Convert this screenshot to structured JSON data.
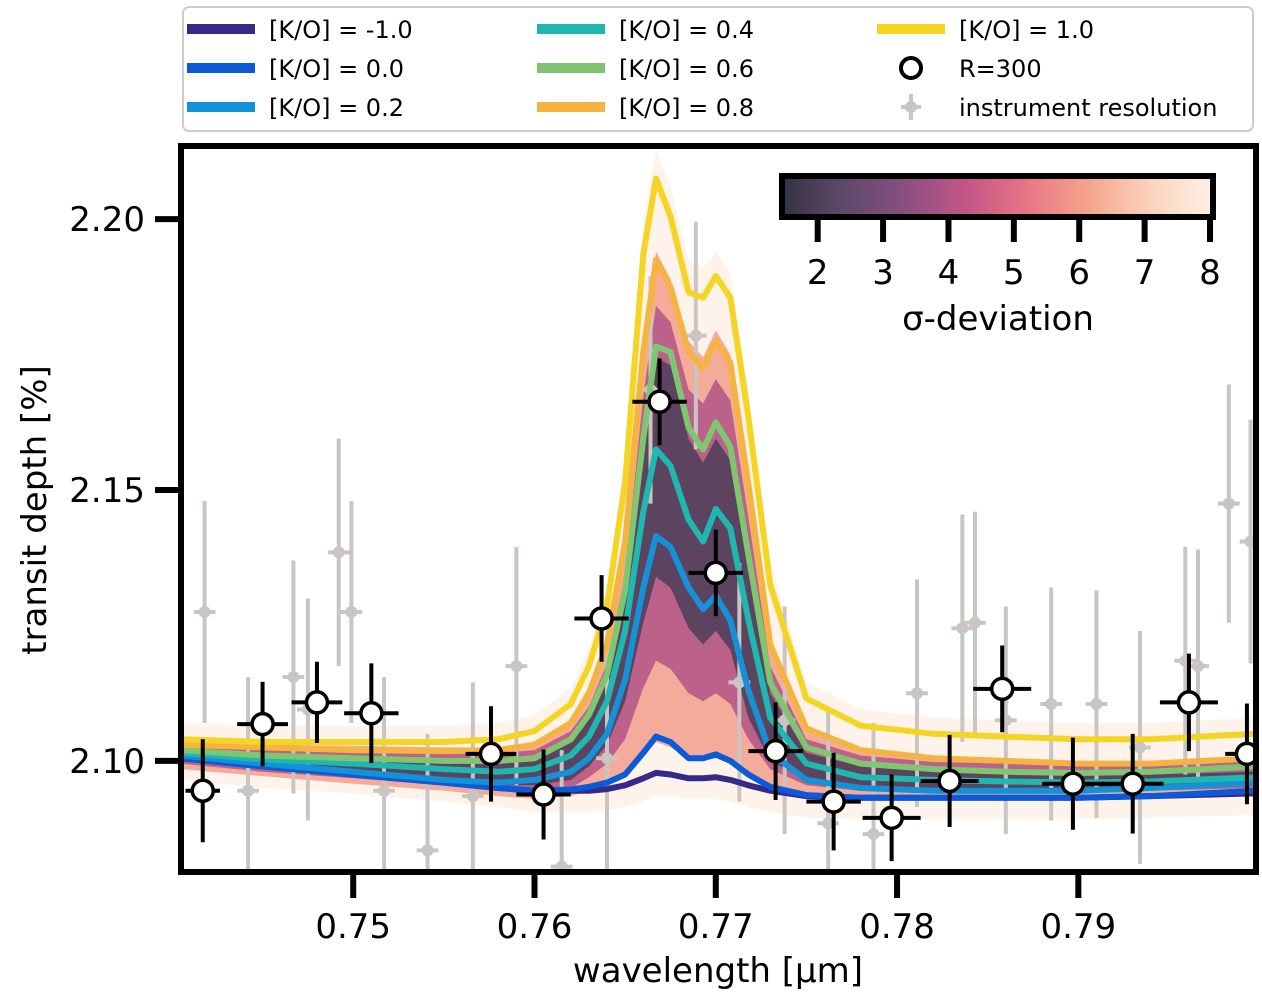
{
  "chart_data": {
    "type": "line",
    "xlabel": "wavelength [μm]",
    "ylabel": "transit depth [%]",
    "xlim": [
      0.7405,
      0.7998
    ],
    "ylim": [
      2.0795,
      2.2135
    ],
    "xticks": [
      0.75,
      0.76,
      0.77,
      0.78,
      0.79
    ],
    "xtick_labels": [
      "0.75",
      "0.76",
      "0.77",
      "0.78",
      "0.79"
    ],
    "yticks": [
      2.1,
      2.15,
      2.2
    ],
    "ytick_labels": [
      "2.10",
      "2.15",
      "2.20"
    ],
    "grid": false,
    "legend_position": "top, outside plot, 3 columns",
    "model_x": [
      0.7405,
      0.745,
      0.75,
      0.755,
      0.758,
      0.76,
      0.762,
      0.763,
      0.764,
      0.765,
      0.766,
      0.7667,
      0.7675,
      0.7685,
      0.7693,
      0.77,
      0.7708,
      0.7718,
      0.773,
      0.775,
      0.778,
      0.782,
      0.786,
      0.79,
      0.794,
      0.7998
    ],
    "series": [
      {
        "name": "[K/O] = -1.0",
        "color": "#352a87",
        "values": [
          2.1005,
          2.099,
          2.0975,
          2.096,
          2.095,
          2.0945,
          2.0945,
          2.0945,
          2.0948,
          2.0955,
          2.0968,
          2.0978,
          2.0975,
          2.0968,
          2.0968,
          2.097,
          2.0965,
          2.0955,
          2.0945,
          2.0935,
          2.0932,
          2.0932,
          2.0932,
          2.0932,
          2.0935,
          2.094
        ]
      },
      {
        "name": "[K/O] = 0.0",
        "color": "#0b5ad8",
        "values": [
          2.1005,
          2.099,
          2.0975,
          2.096,
          2.095,
          2.0945,
          2.0947,
          2.0952,
          2.096,
          2.0975,
          2.1015,
          2.1045,
          2.1035,
          2.1005,
          2.1005,
          2.1012,
          2.1,
          2.0975,
          2.0952,
          2.0937,
          2.0932,
          2.0932,
          2.0932,
          2.0932,
          2.0935,
          2.0945
        ]
      },
      {
        "name": "[K/O] = 0.2",
        "color": "#1392d8",
        "values": [
          2.101,
          2.0995,
          2.098,
          2.0965,
          2.096,
          2.0965,
          2.098,
          2.1005,
          2.105,
          2.115,
          2.132,
          2.1415,
          2.1395,
          2.132,
          2.128,
          2.1305,
          2.126,
          2.113,
          2.1015,
          2.0965,
          2.095,
          2.0945,
          2.0945,
          2.0945,
          2.095,
          2.096
        ]
      },
      {
        "name": "[K/O] = 0.4",
        "color": "#1fb8b0",
        "values": [
          2.1015,
          2.1003,
          2.0995,
          2.0985,
          2.098,
          2.0985,
          2.101,
          2.1045,
          2.111,
          2.124,
          2.146,
          2.1575,
          2.1545,
          2.1445,
          2.1405,
          2.1465,
          2.143,
          2.126,
          2.108,
          2.0995,
          2.097,
          2.0965,
          2.0962,
          2.096,
          2.0962,
          2.097
        ]
      },
      {
        "name": "[K/O] = 0.6",
        "color": "#7fc670",
        "values": [
          2.102,
          2.101,
          2.1005,
          2.1,
          2.1,
          2.1005,
          2.104,
          2.1085,
          2.116,
          2.1315,
          2.1595,
          2.1765,
          2.1755,
          2.1615,
          2.1575,
          2.1625,
          2.158,
          2.138,
          2.1145,
          2.1025,
          2.0995,
          2.0985,
          2.098,
          2.0978,
          2.098,
          2.099
        ]
      },
      {
        "name": "[K/O] = 0.8",
        "color": "#f5b342",
        "values": [
          2.103,
          2.1025,
          2.102,
          2.1018,
          2.102,
          2.103,
          2.107,
          2.1125,
          2.1215,
          2.1405,
          2.1755,
          2.1925,
          2.1875,
          2.1755,
          2.1725,
          2.1775,
          2.1735,
          2.151,
          2.1215,
          2.106,
          2.102,
          2.1005,
          2.1,
          2.0995,
          2.0995,
          2.1005
        ]
      },
      {
        "name": "[K/O] = 1.0",
        "color": "#f5d423",
        "values": [
          2.104,
          2.1035,
          2.1035,
          2.1035,
          2.104,
          2.1055,
          2.1105,
          2.1175,
          2.1285,
          2.1515,
          2.1935,
          2.2075,
          2.2005,
          2.1865,
          2.1855,
          2.1895,
          2.1855,
          2.1635,
          2.1325,
          2.1115,
          2.1065,
          2.105,
          2.1045,
          2.104,
          2.104,
          2.105
        ]
      }
    ],
    "sigma_bands": [
      {
        "sigma": 8,
        "lower": [
          2.0965,
          2.095,
          2.094,
          2.0925,
          2.0915,
          2.0905,
          2.0905,
          2.0905,
          2.091,
          2.0915,
          2.0925,
          2.0935,
          2.0935,
          2.093,
          2.093,
          2.093,
          2.0925,
          2.0915,
          2.0905,
          2.0895,
          2.0892,
          2.0892,
          2.0892,
          2.0892,
          2.0895,
          2.09
        ],
        "upper": [
          2.107,
          2.1065,
          2.1065,
          2.1065,
          2.107,
          2.1085,
          2.1135,
          2.121,
          2.132,
          2.156,
          2.2,
          2.213,
          2.206,
          2.1925,
          2.191,
          2.194,
          2.19,
          2.168,
          2.1365,
          2.1145,
          2.1095,
          2.108,
          2.1075,
          2.107,
          2.107,
          2.108
        ]
      },
      {
        "sigma": 6,
        "lower": [
          2.0985,
          2.0972,
          2.0958,
          2.0945,
          2.0935,
          2.093,
          2.0935,
          2.0945,
          2.096,
          2.098,
          2.101,
          2.1035,
          2.1025,
          2.1005,
          2.1,
          2.1005,
          2.0995,
          2.0975,
          2.095,
          2.0935,
          2.093,
          2.093,
          2.093,
          2.093,
          2.0932,
          2.094
        ],
        "upper": [
          2.1035,
          2.103,
          2.1028,
          2.1025,
          2.1025,
          2.103,
          2.107,
          2.1125,
          2.121,
          2.14,
          2.1775,
          2.194,
          2.189,
          2.1775,
          2.1745,
          2.1795,
          2.175,
          2.152,
          2.122,
          2.106,
          2.102,
          2.1005,
          2.1,
          2.0998,
          2.0998,
          2.1005
        ]
      },
      {
        "sigma": 4,
        "lower": [
          2.0995,
          2.098,
          2.0968,
          2.0955,
          2.0945,
          2.0942,
          2.095,
          2.097,
          2.0995,
          2.104,
          2.1135,
          2.1185,
          2.117,
          2.1125,
          2.111,
          2.1125,
          2.1105,
          2.104,
          2.0985,
          2.0955,
          2.0945,
          2.0942,
          2.0942,
          2.0942,
          2.0945,
          2.095
        ],
        "upper": [
          2.103,
          2.1025,
          2.102,
          2.1015,
          2.1015,
          2.102,
          2.1055,
          2.11,
          2.118,
          2.1345,
          2.1675,
          2.184,
          2.181,
          2.1685,
          2.166,
          2.1705,
          2.1665,
          2.145,
          2.1175,
          2.104,
          2.101,
          2.0998,
          2.0995,
          2.0993,
          2.0995,
          2.1
        ]
      },
      {
        "sigma": 2,
        "lower": [
          2.1,
          2.0988,
          2.0975,
          2.0965,
          2.0955,
          2.0955,
          2.0965,
          2.099,
          2.103,
          2.111,
          2.1255,
          2.134,
          2.132,
          2.1245,
          2.1215,
          2.124,
          2.1205,
          2.108,
          2.1,
          2.0965,
          2.0955,
          2.095,
          2.095,
          2.095,
          2.0952,
          2.0958
        ],
        "upper": [
          2.102,
          2.1012,
          2.1005,
          2.1,
          2.1,
          2.1008,
          2.104,
          2.1085,
          2.1155,
          2.131,
          2.158,
          2.1745,
          2.173,
          2.1595,
          2.155,
          2.1595,
          2.1555,
          2.136,
          2.1125,
          2.1015,
          2.099,
          2.098,
          2.0975,
          2.0972,
          2.0975,
          2.098
        ]
      }
    ],
    "colorbar": {
      "label": "σ-deviation",
      "ticks": [
        2,
        3,
        4,
        5,
        6,
        7,
        8
      ],
      "tick_labels": [
        "2",
        "3",
        "4",
        "5",
        "6",
        "7",
        "8"
      ],
      "range": [
        1.5,
        8
      ],
      "cmap": [
        "#353141",
        "#5e4a6b",
        "#8a4f80",
        "#c45588",
        "#e77785",
        "#f5a58c",
        "#fbd3bd",
        "#fdf1e6"
      ],
      "position": "top-right, inside plot"
    },
    "r300": {
      "name": "R=300",
      "x": [
        0.7417,
        0.745,
        0.748,
        0.751,
        0.7576,
        0.7605,
        0.7637,
        0.7669,
        0.77,
        0.7733,
        0.7765,
        0.7797,
        0.7829,
        0.7858,
        0.7897,
        0.793,
        0.7961,
        0.7993
      ],
      "y": [
        2.0945,
        2.1068,
        2.1108,
        2.1088,
        2.1013,
        2.0938,
        2.1263,
        2.1663,
        2.1347,
        2.1018,
        2.0925,
        2.0895,
        2.0963,
        2.1133,
        2.0958,
        2.0958,
        2.1108,
        2.1013
      ],
      "xerr": [
        0.00095,
        0.0014,
        0.0014,
        0.0015,
        0.0014,
        0.0015,
        0.0015,
        0.0015,
        0.0015,
        0.0015,
        0.0015,
        0.0016,
        0.0016,
        0.0016,
        0.0017,
        0.0017,
        0.0016,
        0.0012
      ],
      "yerr": [
        0.0095,
        0.0078,
        0.0075,
        0.0092,
        0.0088,
        0.0083,
        0.008,
        0.008,
        0.008,
        0.009,
        0.009,
        0.008,
        0.0085,
        0.008,
        0.0085,
        0.0092,
        0.009,
        0.0093
      ]
    },
    "instrument": {
      "name": "instrument resolution",
      "x": [
        0.7418,
        0.7442,
        0.7467,
        0.7475,
        0.7492,
        0.7499,
        0.7517,
        0.7541,
        0.7566,
        0.759,
        0.7615,
        0.764,
        0.7664,
        0.7689,
        0.7713,
        0.7738,
        0.7762,
        0.7787,
        0.7811,
        0.7836,
        0.7843,
        0.786,
        0.7885,
        0.791,
        0.7934,
        0.7959,
        0.7966,
        0.7983,
        0.7995
      ],
      "y": [
        2.1275,
        2.0945,
        2.1155,
        2.1095,
        2.1385,
        2.1275,
        2.0945,
        2.0835,
        2.0935,
        2.1175,
        2.0805,
        2.1005,
        2.1685,
        2.1785,
        2.1145,
        2.1075,
        2.0885,
        2.0865,
        2.1125,
        2.1245,
        2.1255,
        2.1075,
        2.1105,
        2.1105,
        2.1025,
        2.1185,
        2.1175,
        2.1475,
        2.1405
      ],
      "xerr": [
        0.0006,
        0.0006,
        0.0006,
        0.0006,
        0.0006,
        0.0006,
        0.0006,
        0.0006,
        0.0006,
        0.0006,
        0.0006,
        0.0006,
        0.0006,
        0.0006,
        0.0006,
        0.0006,
        0.0006,
        0.0006,
        0.0006,
        0.0006,
        0.0006,
        0.0006,
        0.0006,
        0.0006,
        0.0006,
        0.0006,
        0.0006,
        0.0006,
        0.0006
      ],
      "yerr": [
        0.0205,
        0.021,
        0.0215,
        0.0205,
        0.021,
        0.0205,
        0.021,
        0.0215,
        0.021,
        0.022,
        0.0215,
        0.021,
        0.021,
        0.021,
        0.022,
        0.021,
        0.021,
        0.0205,
        0.021,
        0.021,
        0.0205,
        0.021,
        0.0215,
        0.021,
        0.0215,
        0.021,
        0.0215,
        0.022,
        0.0225
      ]
    }
  }
}
